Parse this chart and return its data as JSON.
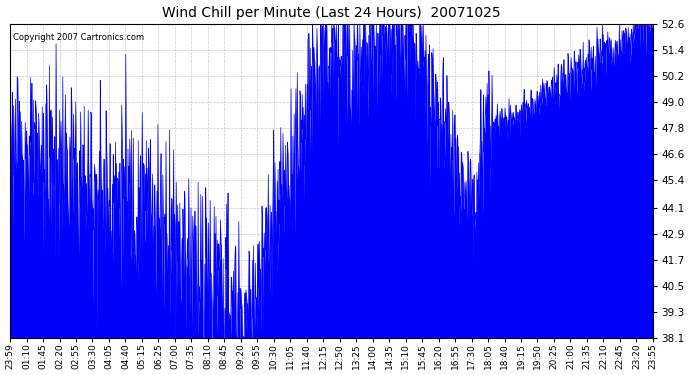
{
  "title": "Wind Chill per Minute (Last 24 Hours)  20071025",
  "copyright": "Copyright 2007 Cartronics.com",
  "ylim": [
    38.1,
    52.6
  ],
  "yticks": [
    38.1,
    39.3,
    40.5,
    41.7,
    42.9,
    44.1,
    45.4,
    46.6,
    47.8,
    49.0,
    50.2,
    51.4,
    52.6
  ],
  "line_color": "#0000FF",
  "bg_color": "#FFFFFF",
  "plot_bg_color": "#FFFFFF",
  "grid_color": "#BBBBBB",
  "title_color": "#000000",
  "copyright_color": "#000000",
  "xtick_labels": [
    "23:59",
    "01:10",
    "01:45",
    "02:20",
    "02:55",
    "03:30",
    "04:05",
    "04:40",
    "05:15",
    "06:25",
    "07:00",
    "07:35",
    "08:10",
    "08:45",
    "09:20",
    "09:55",
    "10:30",
    "11:05",
    "11:40",
    "12:15",
    "12:50",
    "13:25",
    "14:00",
    "14:35",
    "15:10",
    "15:45",
    "16:20",
    "16:55",
    "17:30",
    "18:05",
    "18:40",
    "19:15",
    "19:50",
    "20:25",
    "21:00",
    "21:35",
    "22:10",
    "22:45",
    "23:20",
    "23:55"
  ],
  "figsize": [
    6.9,
    3.75
  ],
  "dpi": 100
}
